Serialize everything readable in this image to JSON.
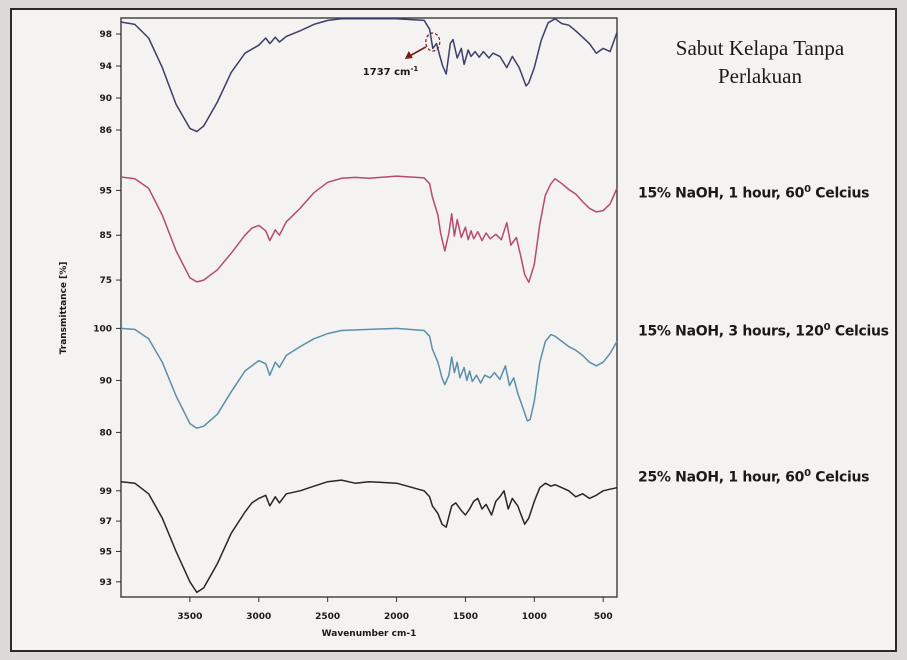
{
  "chart_data": {
    "type": "line",
    "xlabel": "Wavenumber cm-1",
    "ylabel": "Transmittance [%]",
    "x_direction": "descending",
    "xlim": [
      4000,
      400
    ],
    "x_ticks": [
      3500,
      3000,
      2500,
      2000,
      1500,
      1000,
      500
    ],
    "annotation": {
      "text": "1737 cm",
      "superscript": "-1",
      "x": 1737
    },
    "series": [
      {
        "name": "Sabut Kelapa Tanpa Perlakuan",
        "color": "#3c3e6a",
        "ylim": [
          84,
          100
        ],
        "y_ticks": [
          98,
          94,
          90,
          86
        ],
        "points": [
          [
            4000,
            99.5
          ],
          [
            3900,
            99.2
          ],
          [
            3800,
            97.5
          ],
          [
            3700,
            93.8
          ],
          [
            3600,
            89.2
          ],
          [
            3500,
            86.2
          ],
          [
            3450,
            85.8
          ],
          [
            3400,
            86.5
          ],
          [
            3300,
            89.5
          ],
          [
            3200,
            93.2
          ],
          [
            3100,
            95.6
          ],
          [
            3000,
            96.6
          ],
          [
            2950,
            97.5
          ],
          [
            2920,
            96.8
          ],
          [
            2880,
            97.6
          ],
          [
            2850,
            97.0
          ],
          [
            2800,
            97.7
          ],
          [
            2700,
            98.4
          ],
          [
            2600,
            99.2
          ],
          [
            2500,
            99.7
          ],
          [
            2400,
            99.9
          ],
          [
            2200,
            99.9
          ],
          [
            2000,
            99.9
          ],
          [
            1800,
            99.7
          ],
          [
            1760,
            98.6
          ],
          [
            1737,
            96.2
          ],
          [
            1710,
            96.8
          ],
          [
            1690,
            95.5
          ],
          [
            1665,
            94.0
          ],
          [
            1640,
            93.0
          ],
          [
            1610,
            96.8
          ],
          [
            1590,
            97.3
          ],
          [
            1560,
            95.0
          ],
          [
            1530,
            96.2
          ],
          [
            1510,
            94.2
          ],
          [
            1480,
            96.0
          ],
          [
            1460,
            95.2
          ],
          [
            1430,
            95.8
          ],
          [
            1400,
            95.1
          ],
          [
            1370,
            95.8
          ],
          [
            1330,
            95.0
          ],
          [
            1300,
            95.6
          ],
          [
            1250,
            95.2
          ],
          [
            1200,
            93.8
          ],
          [
            1160,
            95.2
          ],
          [
            1110,
            93.8
          ],
          [
            1060,
            91.5
          ],
          [
            1040,
            91.9
          ],
          [
            1000,
            93.8
          ],
          [
            950,
            97.2
          ],
          [
            900,
            99.4
          ],
          [
            850,
            99.9
          ],
          [
            800,
            99.3
          ],
          [
            750,
            99.1
          ],
          [
            700,
            98.4
          ],
          [
            650,
            97.6
          ],
          [
            600,
            96.8
          ],
          [
            550,
            95.6
          ],
          [
            500,
            96.2
          ],
          [
            450,
            95.8
          ],
          [
            400,
            98.2
          ]
        ]
      },
      {
        "name": "15% NaOH, 1 hour, 60",
        "name_sup": "0",
        "name_tail": " Celcius",
        "color": "#b84a6a",
        "ylim": [
          71,
          100
        ],
        "y_ticks": [
          95,
          85,
          75
        ],
        "points": [
          [
            4000,
            98.0
          ],
          [
            3900,
            97.6
          ],
          [
            3800,
            95.5
          ],
          [
            3700,
            89.5
          ],
          [
            3600,
            81.5
          ],
          [
            3500,
            75.5
          ],
          [
            3450,
            74.6
          ],
          [
            3400,
            75.0
          ],
          [
            3300,
            77.3
          ],
          [
            3200,
            81.0
          ],
          [
            3100,
            85.0
          ],
          [
            3050,
            86.6
          ],
          [
            3000,
            87.2
          ],
          [
            2950,
            86.0
          ],
          [
            2920,
            83.8
          ],
          [
            2880,
            86.2
          ],
          [
            2850,
            85.0
          ],
          [
            2800,
            88.0
          ],
          [
            2700,
            91.0
          ],
          [
            2600,
            94.5
          ],
          [
            2500,
            96.8
          ],
          [
            2400,
            97.7
          ],
          [
            2300,
            97.9
          ],
          [
            2200,
            97.7
          ],
          [
            2000,
            98.2
          ],
          [
            1800,
            97.8
          ],
          [
            1760,
            96.5
          ],
          [
            1740,
            93.5
          ],
          [
            1700,
            89.5
          ],
          [
            1680,
            85.5
          ],
          [
            1650,
            81.5
          ],
          [
            1620,
            85.5
          ],
          [
            1600,
            89.8
          ],
          [
            1580,
            84.8
          ],
          [
            1560,
            88.5
          ],
          [
            1530,
            84.5
          ],
          [
            1500,
            86.8
          ],
          [
            1480,
            84.0
          ],
          [
            1460,
            86.0
          ],
          [
            1440,
            84.2
          ],
          [
            1410,
            85.8
          ],
          [
            1380,
            83.8
          ],
          [
            1350,
            85.5
          ],
          [
            1320,
            84.2
          ],
          [
            1280,
            85.2
          ],
          [
            1240,
            84.0
          ],
          [
            1200,
            87.8
          ],
          [
            1170,
            82.8
          ],
          [
            1130,
            84.5
          ],
          [
            1100,
            80.5
          ],
          [
            1070,
            76.2
          ],
          [
            1040,
            74.5
          ],
          [
            1000,
            78.5
          ],
          [
            960,
            87.5
          ],
          [
            920,
            94.0
          ],
          [
            880,
            96.5
          ],
          [
            850,
            97.6
          ],
          [
            800,
            96.5
          ],
          [
            750,
            95.2
          ],
          [
            700,
            94.2
          ],
          [
            650,
            92.5
          ],
          [
            600,
            91.0
          ],
          [
            550,
            90.2
          ],
          [
            500,
            90.5
          ],
          [
            450,
            92.0
          ],
          [
            400,
            95.5
          ]
        ]
      },
      {
        "name": "15% NaOH, 3 hours, 120",
        "name_sup": "0",
        "name_tail": " Celcius",
        "color": "#5a8faa",
        "ylim": [
          77,
          102
        ],
        "y_ticks": [
          100,
          90,
          80
        ],
        "points": [
          [
            4000,
            100.0
          ],
          [
            3900,
            99.8
          ],
          [
            3800,
            98.0
          ],
          [
            3700,
            93.5
          ],
          [
            3600,
            87.0
          ],
          [
            3500,
            81.7
          ],
          [
            3450,
            80.8
          ],
          [
            3400,
            81.2
          ],
          [
            3300,
            83.5
          ],
          [
            3200,
            87.8
          ],
          [
            3100,
            91.8
          ],
          [
            3000,
            93.8
          ],
          [
            2950,
            93.2
          ],
          [
            2920,
            91.0
          ],
          [
            2880,
            93.5
          ],
          [
            2850,
            92.5
          ],
          [
            2800,
            94.8
          ],
          [
            2700,
            96.5
          ],
          [
            2600,
            98.0
          ],
          [
            2500,
            99.0
          ],
          [
            2400,
            99.6
          ],
          [
            2200,
            99.8
          ],
          [
            2000,
            100.0
          ],
          [
            1800,
            99.6
          ],
          [
            1760,
            98.5
          ],
          [
            1740,
            96.0
          ],
          [
            1700,
            93.5
          ],
          [
            1670,
            90.5
          ],
          [
            1650,
            89.2
          ],
          [
            1620,
            91.0
          ],
          [
            1600,
            94.5
          ],
          [
            1580,
            91.5
          ],
          [
            1560,
            93.5
          ],
          [
            1540,
            90.5
          ],
          [
            1510,
            92.5
          ],
          [
            1490,
            90.0
          ],
          [
            1470,
            91.8
          ],
          [
            1450,
            89.8
          ],
          [
            1420,
            91.0
          ],
          [
            1390,
            89.5
          ],
          [
            1360,
            91.0
          ],
          [
            1320,
            90.5
          ],
          [
            1290,
            91.5
          ],
          [
            1250,
            90.2
          ],
          [
            1210,
            92.8
          ],
          [
            1180,
            89.0
          ],
          [
            1150,
            90.5
          ],
          [
            1120,
            87.5
          ],
          [
            1080,
            84.5
          ],
          [
            1050,
            82.2
          ],
          [
            1030,
            82.5
          ],
          [
            1000,
            86.0
          ],
          [
            960,
            93.5
          ],
          [
            920,
            97.5
          ],
          [
            880,
            98.8
          ],
          [
            850,
            98.5
          ],
          [
            800,
            97.5
          ],
          [
            750,
            96.5
          ],
          [
            700,
            95.8
          ],
          [
            650,
            94.8
          ],
          [
            600,
            93.5
          ],
          [
            550,
            92.8
          ],
          [
            500,
            93.5
          ],
          [
            450,
            95.2
          ],
          [
            400,
            97.5
          ]
        ]
      },
      {
        "name": "25% NaOH, 1 hour, 60",
        "name_sup": "0",
        "name_tail": " Celcius",
        "color": "#262626",
        "ylim": [
          92,
          100.5
        ],
        "y_ticks": [
          99,
          97,
          95,
          93
        ],
        "points": [
          [
            4000,
            99.6
          ],
          [
            3900,
            99.5
          ],
          [
            3800,
            98.8
          ],
          [
            3700,
            97.2
          ],
          [
            3600,
            95.0
          ],
          [
            3500,
            93.0
          ],
          [
            3450,
            92.3
          ],
          [
            3400,
            92.6
          ],
          [
            3300,
            94.2
          ],
          [
            3200,
            96.2
          ],
          [
            3100,
            97.6
          ],
          [
            3050,
            98.2
          ],
          [
            3000,
            98.5
          ],
          [
            2950,
            98.7
          ],
          [
            2920,
            98.0
          ],
          [
            2880,
            98.6
          ],
          [
            2850,
            98.2
          ],
          [
            2800,
            98.8
          ],
          [
            2700,
            99.0
          ],
          [
            2600,
            99.3
          ],
          [
            2500,
            99.6
          ],
          [
            2400,
            99.7
          ],
          [
            2300,
            99.5
          ],
          [
            2200,
            99.6
          ],
          [
            2000,
            99.5
          ],
          [
            1800,
            99.0
          ],
          [
            1760,
            98.6
          ],
          [
            1740,
            98.0
          ],
          [
            1700,
            97.5
          ],
          [
            1670,
            96.8
          ],
          [
            1640,
            96.6
          ],
          [
            1620,
            97.3
          ],
          [
            1600,
            98.0
          ],
          [
            1570,
            98.2
          ],
          [
            1530,
            97.7
          ],
          [
            1500,
            97.4
          ],
          [
            1470,
            97.8
          ],
          [
            1440,
            98.3
          ],
          [
            1410,
            98.5
          ],
          [
            1380,
            97.8
          ],
          [
            1350,
            98.1
          ],
          [
            1310,
            97.4
          ],
          [
            1280,
            98.3
          ],
          [
            1250,
            98.6
          ],
          [
            1220,
            99.0
          ],
          [
            1190,
            97.8
          ],
          [
            1160,
            98.5
          ],
          [
            1120,
            98.0
          ],
          [
            1100,
            97.5
          ],
          [
            1070,
            96.8
          ],
          [
            1040,
            97.2
          ],
          [
            1000,
            98.3
          ],
          [
            960,
            99.2
          ],
          [
            920,
            99.5
          ],
          [
            880,
            99.3
          ],
          [
            850,
            99.4
          ],
          [
            800,
            99.2
          ],
          [
            750,
            99.0
          ],
          [
            700,
            98.6
          ],
          [
            650,
            98.8
          ],
          [
            600,
            98.5
          ],
          [
            550,
            98.7
          ],
          [
            500,
            99.0
          ],
          [
            450,
            99.1
          ],
          [
            400,
            99.2
          ]
        ]
      }
    ]
  },
  "legend": {
    "main_line1": "Sabut Kelapa Tanpa",
    "main_line2": "Perlakuan"
  }
}
